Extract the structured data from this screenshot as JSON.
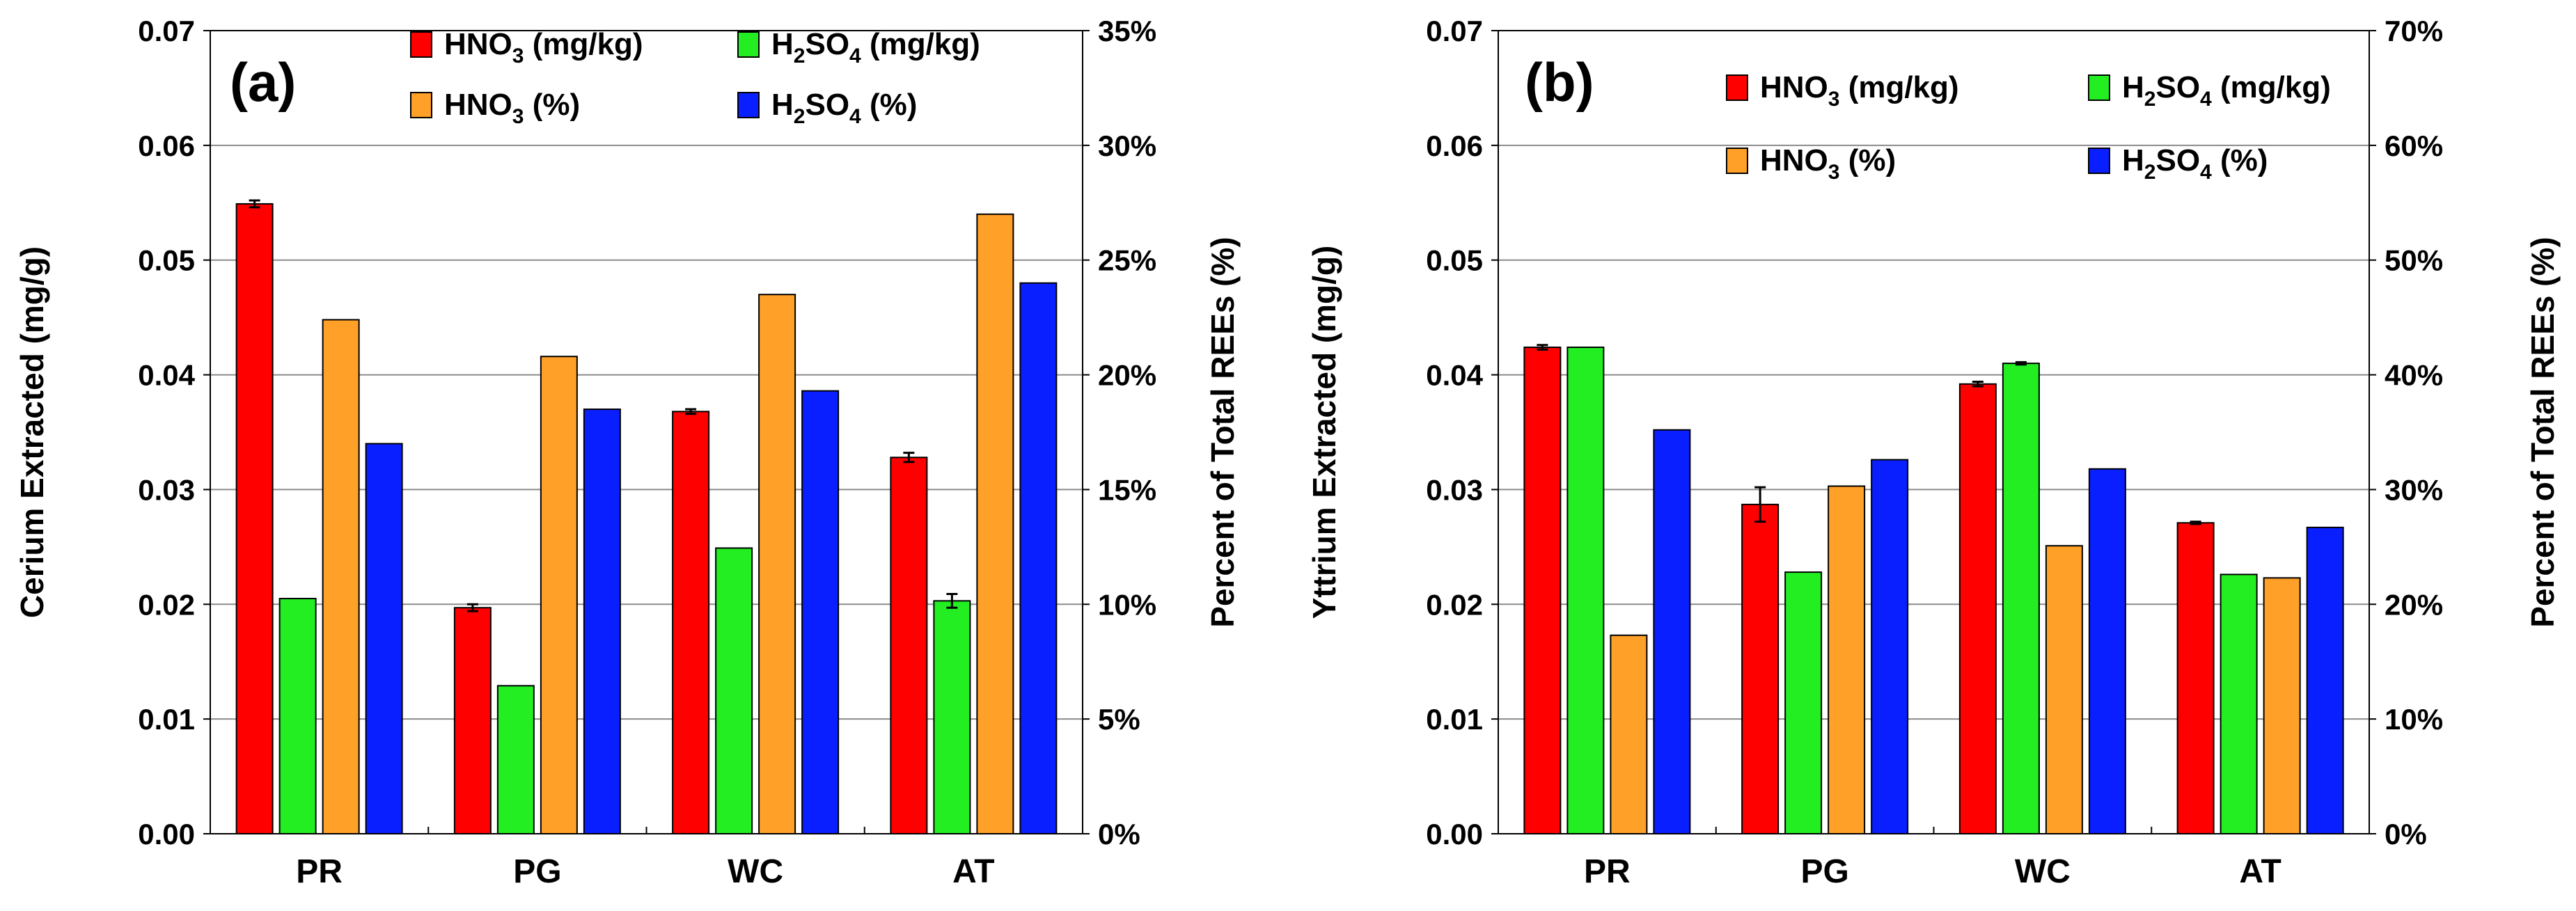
{
  "chart_data": [
    {
      "type": "bar",
      "panel_label": "(a)",
      "categories": [
        "PR",
        "PG",
        "WC",
        "AT"
      ],
      "ylabel": "Cerium Extracted (mg/g)",
      "y2label": "Percent of Total REEs (%)",
      "ylim": [
        0,
        0.07
      ],
      "y2lim": [
        0,
        0.35
      ],
      "yticks": [
        "0.00",
        "0.01",
        "0.02",
        "0.03",
        "0.04",
        "0.05",
        "0.06",
        "0.07"
      ],
      "y2ticks": [
        "0%",
        "5%",
        "10%",
        "15%",
        "20%",
        "25%",
        "30%",
        "35%"
      ],
      "grid": true,
      "legend_position": "top-right",
      "series": [
        {
          "name": "HNO3 (mg/kg)",
          "legend": [
            "HNO",
            "3",
            " (mg/kg)"
          ],
          "axis": "left",
          "color": "#ff0000",
          "values": [
            0.0549,
            0.0197,
            0.0368,
            0.0328
          ],
          "errors": [
            0.0003,
            0.0003,
            0.0002,
            0.0004
          ]
        },
        {
          "name": "H2SO4 (mg/kg)",
          "legend": [
            "H",
            "2",
            "SO",
            "4",
            " (mg/kg)"
          ],
          "axis": "left",
          "color": "#22ee22",
          "values": [
            0.0205,
            0.0129,
            0.0249,
            0.0203
          ],
          "errors": [
            0,
            0,
            0,
            0.0006
          ]
        },
        {
          "name": "HNO3 (%)",
          "legend": [
            "HNO",
            "3",
            " (%)"
          ],
          "axis": "right",
          "color": "#ffa028",
          "values": [
            0.224,
            0.208,
            0.235,
            0.27
          ],
          "errors": [
            0,
            0,
            0,
            0
          ]
        },
        {
          "name": "H2SO4 (%)",
          "legend": [
            "H",
            "2",
            "SO",
            "4",
            " (%)"
          ],
          "axis": "right",
          "color": "#0a1fff",
          "values": [
            0.17,
            0.185,
            0.193,
            0.24
          ],
          "errors": [
            0,
            0,
            0,
            0
          ]
        }
      ]
    },
    {
      "type": "bar",
      "panel_label": "(b)",
      "categories": [
        "PR",
        "PG",
        "WC",
        "AT"
      ],
      "ylabel": "Yttrium Extracted (mg/g)",
      "y2label": "Percent of Total REEs (%)",
      "ylim": [
        0,
        0.07
      ],
      "y2lim": [
        0,
        0.7
      ],
      "yticks": [
        "0.00",
        "0.01",
        "0.02",
        "0.03",
        "0.04",
        "0.05",
        "0.06",
        "0.07"
      ],
      "y2ticks": [
        "0%",
        "10%",
        "20%",
        "30%",
        "40%",
        "50%",
        "60%",
        "70%"
      ],
      "grid": true,
      "legend_position": "top-right",
      "series": [
        {
          "name": "HNO3 (mg/kg)",
          "legend": [
            "HNO",
            "3",
            " (mg/kg)"
          ],
          "axis": "left",
          "color": "#ff0000",
          "values": [
            0.0424,
            0.0287,
            0.0392,
            0.0271
          ],
          "errors": [
            0.0002,
            0.0015,
            0.0002,
            0.0001
          ]
        },
        {
          "name": "H2SO4 (mg/kg)",
          "legend": [
            "H",
            "2",
            "SO",
            "4",
            " (mg/kg)"
          ],
          "axis": "left",
          "color": "#22ee22",
          "values": [
            0.0424,
            0.0228,
            0.041,
            0.0226
          ],
          "errors": [
            0,
            0,
            0.0001,
            0
          ]
        },
        {
          "name": "HNO3 (%)",
          "legend": [
            "HNO",
            "3",
            " (%)"
          ],
          "axis": "right",
          "color": "#ffa028",
          "values": [
            0.173,
            0.303,
            0.251,
            0.223
          ],
          "errors": [
            0,
            0,
            0,
            0
          ]
        },
        {
          "name": "H2SO4 (%)",
          "legend": [
            "H",
            "2",
            "SO",
            "4",
            " (%)"
          ],
          "axis": "right",
          "color": "#0a1fff",
          "values": [
            0.352,
            0.326,
            0.318,
            0.267
          ],
          "errors": [
            0,
            0,
            0,
            0
          ]
        }
      ]
    }
  ]
}
